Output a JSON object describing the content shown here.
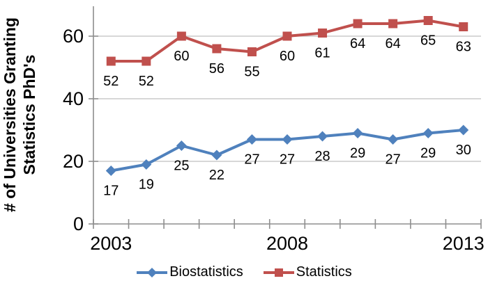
{
  "chart_data": {
    "type": "line",
    "ylabel": "# of Universities Granting Statistics PhD's",
    "ylabel_lines": [
      "# of Universities Granting",
      "Statistics PhD's"
    ],
    "xlabel": "",
    "categories": [
      "2003",
      "2004",
      "2005",
      "2006",
      "2007",
      "2008",
      "2009",
      "2010",
      "2011",
      "2012",
      "2013"
    ],
    "x_tick_labels_shown": [
      {
        "index": 0,
        "label": "2003"
      },
      {
        "index": 5,
        "label": "2008"
      },
      {
        "index": 10,
        "label": "2013"
      }
    ],
    "y_ticks": [
      0,
      20,
      40,
      60
    ],
    "ylim": [
      0,
      70
    ],
    "grid": "horizontal",
    "legend_position": "bottom",
    "data_labels": "below points",
    "series": [
      {
        "name": "Biostatistics",
        "marker": "diamond",
        "color": "#4F81BD",
        "values": [
          17,
          19,
          25,
          22,
          27,
          27,
          28,
          29,
          27,
          29,
          30
        ]
      },
      {
        "name": "Statistics",
        "marker": "square",
        "color": "#C0504D",
        "values": [
          52,
          52,
          60,
          56,
          55,
          60,
          61,
          64,
          64,
          65,
          63
        ]
      }
    ],
    "colors": {
      "gridline": "#BFBFBF",
      "axis": "#8E8E8E",
      "text": "#000000"
    }
  }
}
